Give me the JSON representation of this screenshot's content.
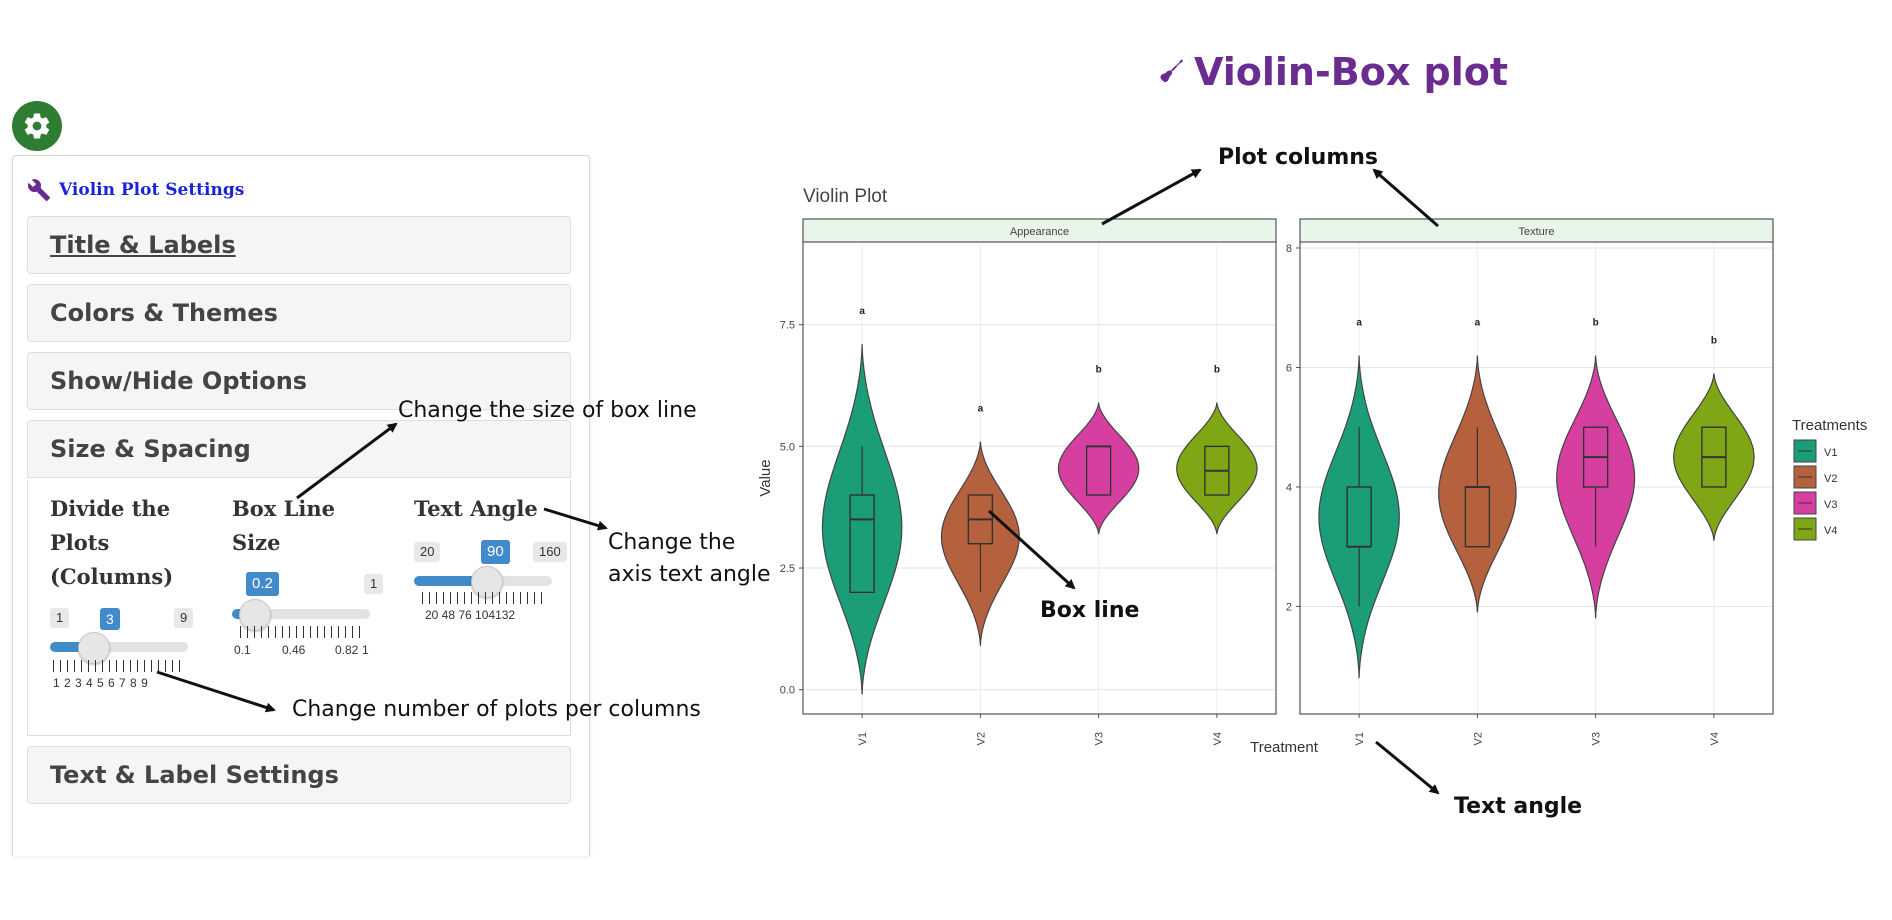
{
  "page_title": "Violin-Box plot",
  "settings": {
    "gear_icon": "gear-icon",
    "panel_title": "Violin Plot Settings",
    "sections": [
      "Title & Labels",
      "Colors & Themes",
      "Show/Hide Options",
      "Size & Spacing",
      "Text & Label Settings"
    ],
    "sliders": {
      "columns": {
        "label": "Divide the Plots (Columns)",
        "min": "1",
        "max": "9",
        "value": "3",
        "ticks": "1 2 3 4 5 6 7 8 9",
        "fraction": 0.25
      },
      "box_line": {
        "label": "Box Line Size",
        "min": "0.1",
        "max": "1",
        "value": "0.2",
        "ticks": [
          "0.1",
          "0.46",
          "0.82",
          "1"
        ],
        "fraction": 0.11
      },
      "text_angle": {
        "label": "Text Angle",
        "min": "20",
        "max": "160",
        "value": "90",
        "ticks": "20 48 76 104132",
        "fraction": 0.5
      }
    }
  },
  "annotations": {
    "box_line_size": "Change the size of box line",
    "axis_text_angle_1": "Change the",
    "axis_text_angle_2": "axis text angle",
    "plots_per_columns": "Change number of plots per columns",
    "plot_columns": "Plot columns",
    "box_line": "Box line",
    "text_angle": "Text angle"
  },
  "chart_data": {
    "type": "violin",
    "title": "Violin Plot",
    "xlabel": "Treatment",
    "ylabel": "Value",
    "categories": [
      "V1",
      "V2",
      "V3",
      "V4"
    ],
    "legend_title": "Treatments",
    "legend_position": "right",
    "colors": {
      "V1": "#1b9e77",
      "V2": "#b5613d",
      "V3": "#d63fa0",
      "V4": "#7ea615"
    },
    "panels": [
      {
        "name": "Appearance",
        "ylim": [
          -0.5,
          9.2
        ],
        "yticks": [
          "0.0",
          "2.5",
          "5.0",
          "7.5"
        ],
        "groups": [
          {
            "cat": "V1",
            "min": -0.1,
            "max": 7.1,
            "q1": 2.0,
            "median": 3.5,
            "q3": 4.0,
            "wlo": 2.0,
            "whi": 5.0,
            "letter": "a"
          },
          {
            "cat": "V2",
            "min": 0.9,
            "max": 5.1,
            "q1": 3.0,
            "median": 3.5,
            "q3": 4.0,
            "wlo": 2.0,
            "whi": 4.0,
            "letter": "a"
          },
          {
            "cat": "V3",
            "min": 3.2,
            "max": 5.9,
            "q1": 4.0,
            "median": 5.0,
            "q3": 5.0,
            "wlo": 4.0,
            "whi": 5.0,
            "letter": "b"
          },
          {
            "cat": "V4",
            "min": 3.2,
            "max": 5.9,
            "q1": 4.0,
            "median": 4.5,
            "q3": 5.0,
            "wlo": 4.0,
            "whi": 5.0,
            "letter": "b"
          }
        ]
      },
      {
        "name": "Texture",
        "ylim": [
          0.2,
          8.1
        ],
        "yticks": [
          "2",
          "4",
          "6",
          "8"
        ],
        "groups": [
          {
            "cat": "V1",
            "min": 0.8,
            "max": 6.2,
            "q1": 3.0,
            "median": 3.0,
            "q3": 4.0,
            "wlo": 2.0,
            "whi": 5.0,
            "letter": "a"
          },
          {
            "cat": "V2",
            "min": 1.9,
            "max": 6.2,
            "q1": 3.0,
            "median": 4.0,
            "q3": 4.0,
            "wlo": 3.0,
            "whi": 5.0,
            "letter": "a"
          },
          {
            "cat": "V3",
            "min": 1.8,
            "max": 6.2,
            "q1": 4.0,
            "median": 4.5,
            "q3": 5.0,
            "wlo": 3.0,
            "whi": 5.0,
            "letter": "b"
          },
          {
            "cat": "V4",
            "min": 3.1,
            "max": 5.9,
            "q1": 4.0,
            "median": 4.5,
            "q3": 5.0,
            "wlo": 4.0,
            "whi": 5.0,
            "letter": "b"
          }
        ]
      }
    ]
  }
}
